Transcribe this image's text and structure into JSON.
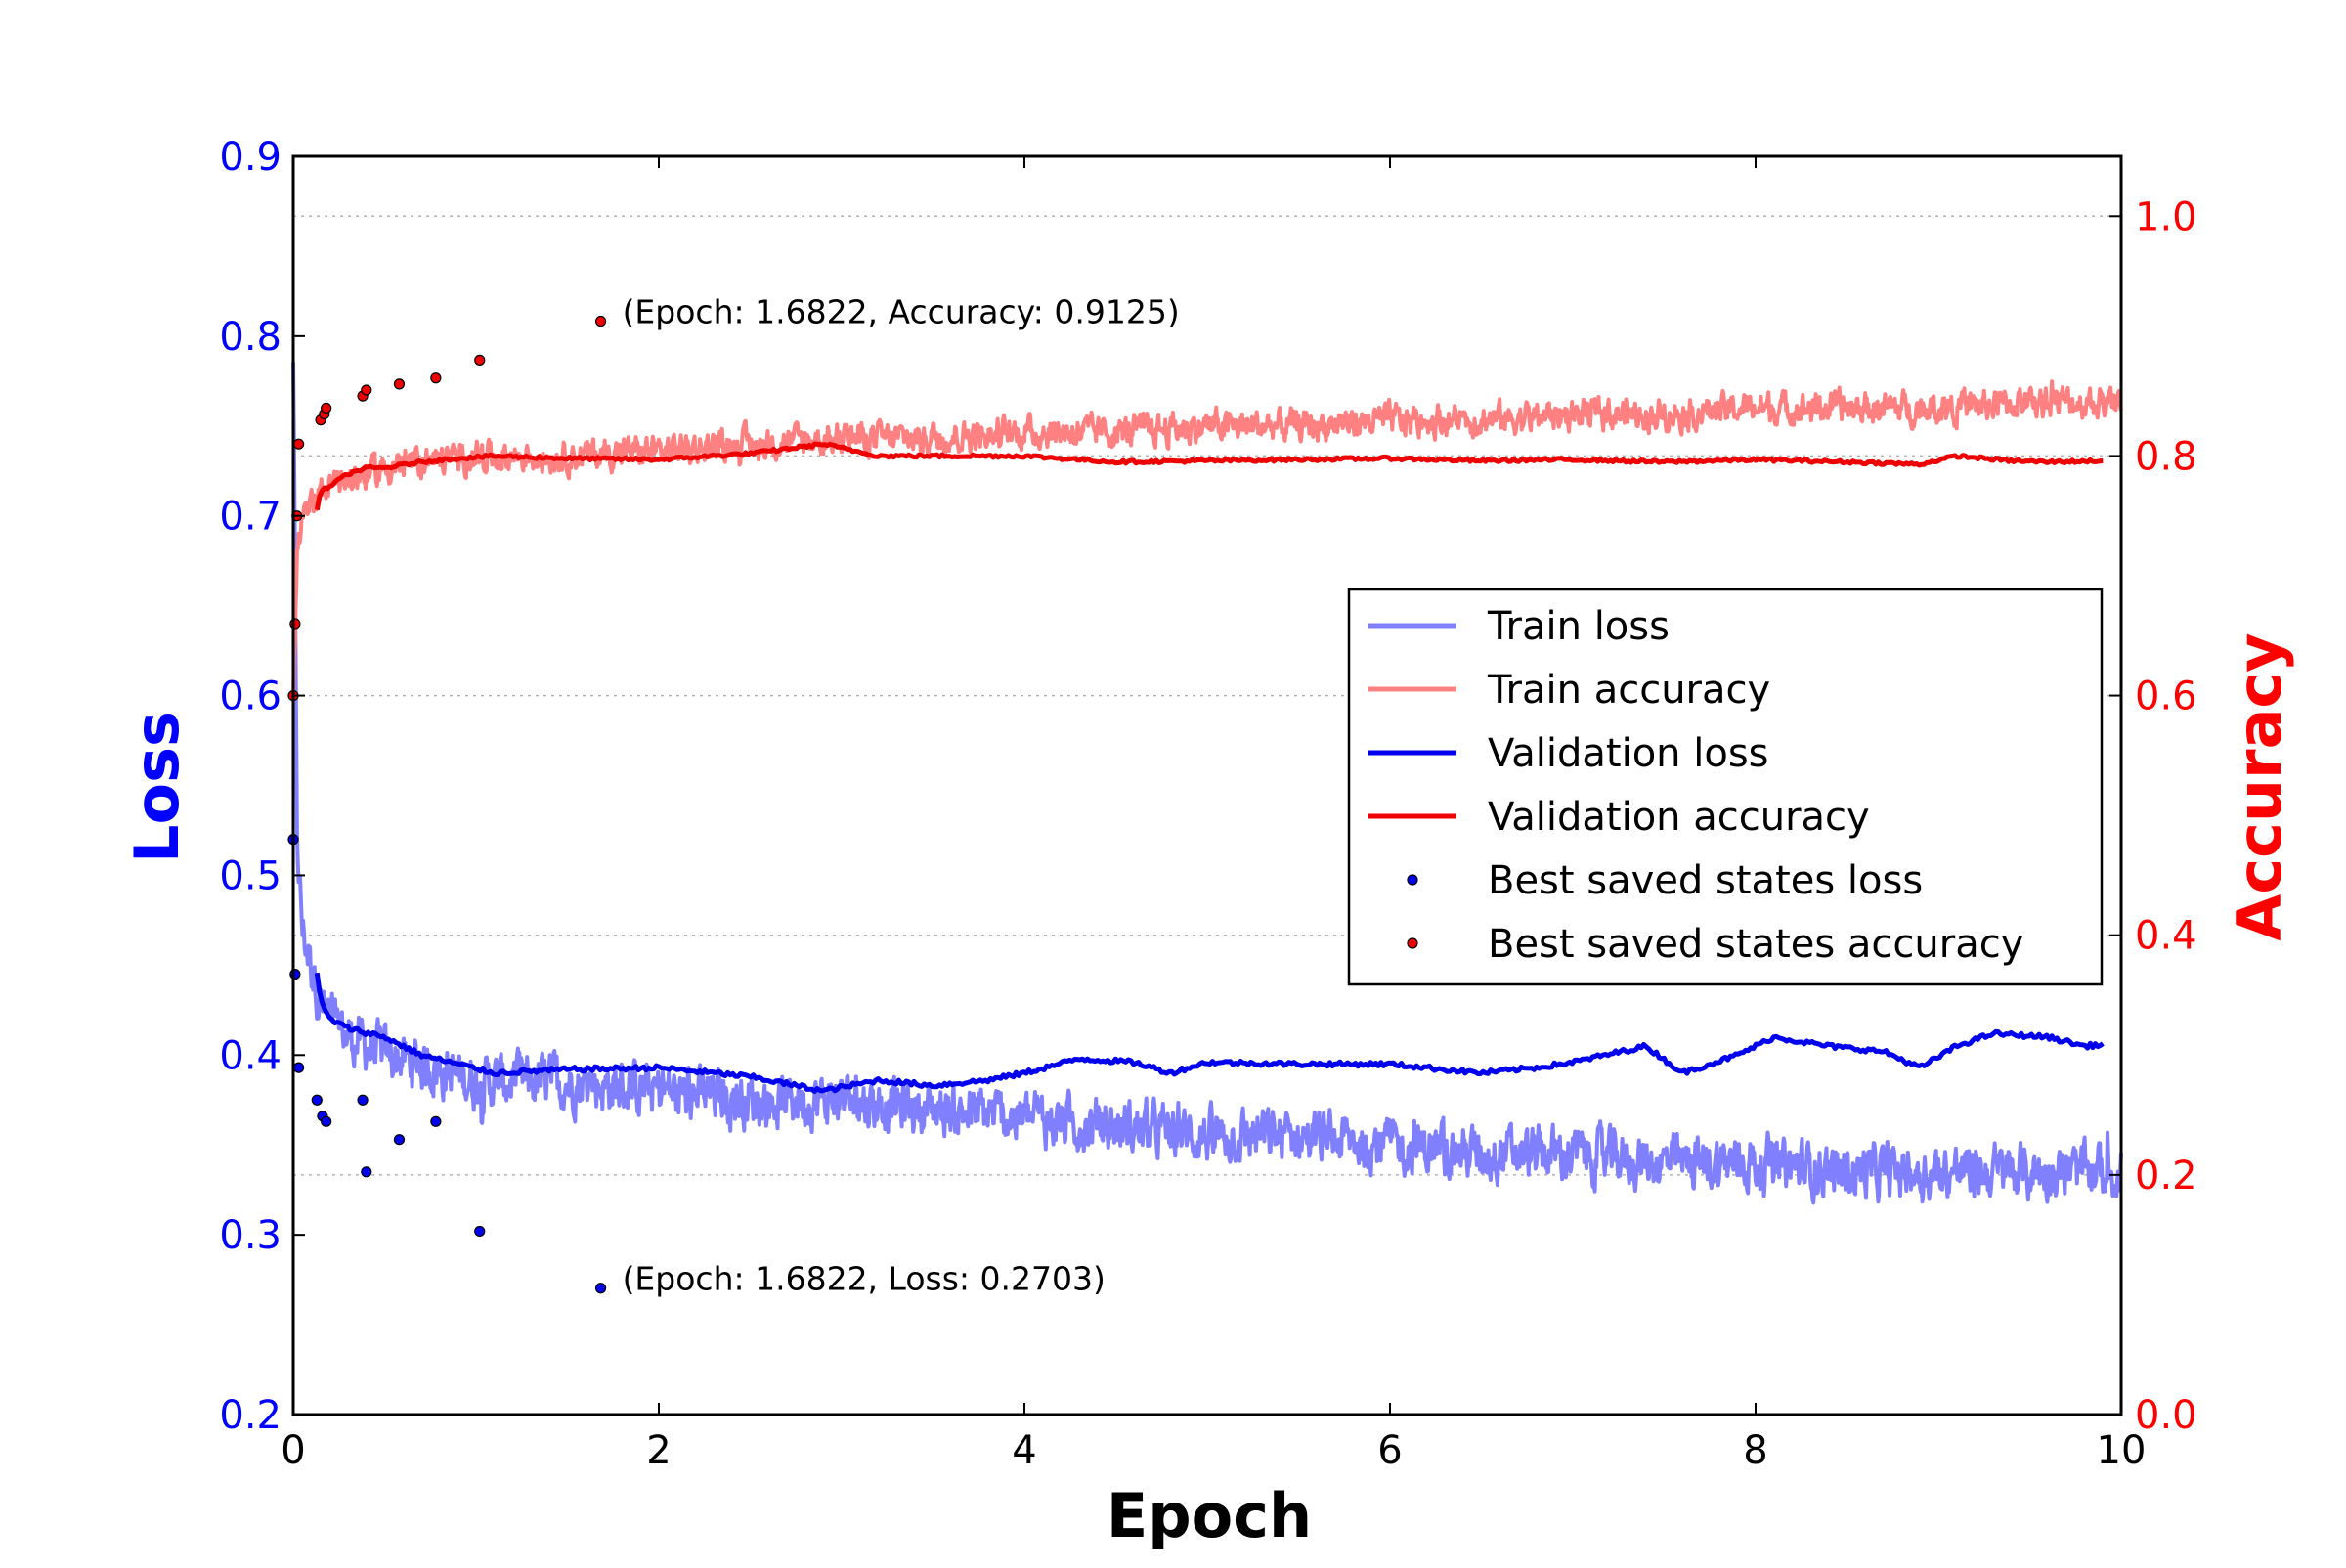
{
  "chart_data": {
    "type": "line",
    "xlabel": "Epoch",
    "ylabel_left": "Loss",
    "ylabel_right": "Accuracy",
    "xlim": [
      0,
      10
    ],
    "ylim_left": [
      0.2,
      0.9
    ],
    "ylim_right": [
      0.0,
      1.05
    ],
    "x_ticks": [
      "0",
      "2",
      "4",
      "6",
      "8",
      "10"
    ],
    "y_left_ticks": [
      "0.2",
      "0.3",
      "0.4",
      "0.5",
      "0.6",
      "0.7",
      "0.8",
      "0.9"
    ],
    "y_right_ticks": [
      "0.0",
      "0.2",
      "0.4",
      "0.6",
      "0.8",
      "1.0"
    ],
    "grid": "horizontal dotted lines at right-axis ticks",
    "legend_position": "center-right",
    "colors": {
      "left_axis": "#0000ff",
      "right_axis": "#ff0000",
      "train_loss": "#8080ff",
      "train_accuracy": "#ff8080",
      "validation_loss": "#0000ee",
      "validation_accuracy": "#ee0000"
    },
    "series": [
      {
        "name": "Train loss",
        "axis": "left",
        "style": "noisy-line",
        "x": [
          0.0,
          0.02,
          0.05,
          0.1,
          0.15,
          0.2,
          0.3,
          0.4,
          0.5,
          0.7,
          1.0,
          1.5,
          2.0,
          2.5,
          3.0,
          3.5,
          4.0,
          4.5,
          5.0,
          5.5,
          6.0,
          6.5,
          7.0,
          7.5,
          8.0,
          8.5,
          9.0,
          9.5,
          10.0
        ],
        "values": [
          0.79,
          0.52,
          0.47,
          0.45,
          0.43,
          0.42,
          0.41,
          0.405,
          0.4,
          0.395,
          0.385,
          0.385,
          0.38,
          0.375,
          0.375,
          0.37,
          0.365,
          0.36,
          0.355,
          0.355,
          0.35,
          0.345,
          0.345,
          0.34,
          0.34,
          0.335,
          0.335,
          0.335,
          0.335
        ],
        "noise_amplitude": 0.025
      },
      {
        "name": "Train accuracy",
        "axis": "right",
        "style": "noisy-line",
        "x": [
          0.0,
          0.02,
          0.05,
          0.1,
          0.15,
          0.2,
          0.3,
          0.4,
          0.5,
          0.7,
          1.0,
          1.5,
          2.0,
          2.5,
          3.0,
          3.5,
          4.0,
          4.5,
          5.0,
          5.5,
          6.0,
          6.5,
          7.0,
          7.5,
          8.0,
          8.5,
          9.0,
          9.5,
          10.0
        ],
        "values": [
          0.6,
          0.72,
          0.745,
          0.76,
          0.77,
          0.775,
          0.78,
          0.785,
          0.79,
          0.795,
          0.8,
          0.8,
          0.805,
          0.81,
          0.815,
          0.815,
          0.82,
          0.82,
          0.825,
          0.825,
          0.83,
          0.83,
          0.835,
          0.835,
          0.84,
          0.84,
          0.84,
          0.845,
          0.845
        ],
        "noise_amplitude": 0.022
      },
      {
        "name": "Validation loss",
        "axis": "left",
        "style": "line",
        "x": [
          0.13,
          0.15,
          0.2,
          0.3,
          0.5,
          0.7,
          0.9,
          1.1,
          1.5,
          2.0,
          2.5,
          2.9,
          3.2,
          3.5,
          3.8,
          4.0,
          4.3,
          4.6,
          4.8,
          5.0,
          5.5,
          6.0,
          6.5,
          6.8,
          7.0,
          7.4,
          7.6,
          7.9,
          8.1,
          8.4,
          8.7,
          8.9,
          9.1,
          9.3,
          9.6,
          9.8,
          9.9
        ],
        "values": [
          0.445,
          0.43,
          0.42,
          0.415,
          0.41,
          0.4,
          0.395,
          0.39,
          0.392,
          0.393,
          0.388,
          0.38,
          0.386,
          0.383,
          0.386,
          0.39,
          0.398,
          0.396,
          0.39,
          0.396,
          0.395,
          0.395,
          0.39,
          0.393,
          0.396,
          0.405,
          0.39,
          0.4,
          0.41,
          0.405,
          0.402,
          0.393,
          0.405,
          0.412,
          0.41,
          0.405,
          0.406
        ],
        "noise_amplitude": 0.0
      },
      {
        "name": "Validation accuracy",
        "axis": "right",
        "style": "line",
        "x": [
          0.13,
          0.15,
          0.2,
          0.3,
          0.4,
          0.5,
          0.7,
          0.9,
          1.1,
          1.5,
          2.0,
          2.5,
          2.9,
          3.2,
          3.5,
          4.0,
          4.5,
          5.0,
          5.5,
          6.0,
          6.5,
          7.0,
          7.5,
          8.0,
          8.5,
          8.9,
          9.1,
          9.4,
          9.6,
          9.9
        ],
        "values": [
          0.755,
          0.77,
          0.775,
          0.785,
          0.79,
          0.79,
          0.795,
          0.798,
          0.8,
          0.798,
          0.797,
          0.802,
          0.81,
          0.8,
          0.8,
          0.8,
          0.795,
          0.796,
          0.797,
          0.798,
          0.796,
          0.797,
          0.795,
          0.797,
          0.795,
          0.793,
          0.8,
          0.796,
          0.795,
          0.796
        ],
        "noise_amplitude": 0.0
      },
      {
        "name": "Best saved states loss",
        "axis": "left",
        "style": "points",
        "x": [
          0.0,
          0.01,
          0.03,
          0.13,
          0.16,
          0.18,
          0.38,
          0.4,
          0.58,
          0.78,
          1.02,
          1.6822
        ],
        "values": [
          0.52,
          0.445,
          0.393,
          0.375,
          0.366,
          0.363,
          0.375,
          0.335,
          0.353,
          0.363,
          0.302,
          0.2703
        ]
      },
      {
        "name": "Best saved states accuracy",
        "axis": "right",
        "style": "points",
        "x": [
          0.0,
          0.01,
          0.02,
          0.03,
          0.15,
          0.17,
          0.18,
          0.38,
          0.4,
          0.58,
          0.78,
          1.02,
          1.6822
        ],
        "values": [
          0.6,
          0.66,
          0.75,
          0.81,
          0.83,
          0.835,
          0.84,
          0.85,
          0.855,
          0.86,
          0.865,
          0.88,
          0.9125
        ]
      }
    ],
    "annotations": [
      {
        "text": "(Epoch: 1.6822, Accuracy: 0.9125)",
        "x": 1.6822,
        "y": 0.9125,
        "axis": "right"
      },
      {
        "text": "(Epoch: 1.6822, Loss: 0.2703)",
        "x": 1.6822,
        "y": 0.2703,
        "axis": "left"
      }
    ],
    "legend": [
      {
        "label": "Train loss",
        "kind": "line",
        "color": "#8080ff"
      },
      {
        "label": "Train accuracy",
        "kind": "line",
        "color": "#ff8080"
      },
      {
        "label": "Validation loss",
        "kind": "line",
        "color": "#0000ee"
      },
      {
        "label": "Validation accuracy",
        "kind": "line",
        "color": "#ee0000"
      },
      {
        "label": "Best saved states loss",
        "kind": "point",
        "color": "#0000ee"
      },
      {
        "label": "Best saved states accuracy",
        "kind": "point",
        "color": "#ee0000"
      }
    ]
  }
}
